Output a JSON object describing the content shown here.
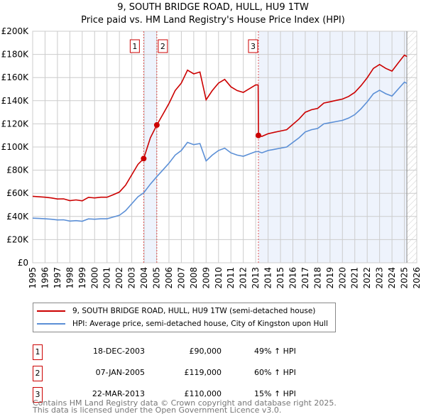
{
  "chart_data": {
    "type": "line",
    "title": "9, SOUTH BRIDGE ROAD, HULL, HU9 1TW",
    "subtitle": "Price paid vs. HM Land Registry's House Price Index (HPI)",
    "xlim": [
      1995,
      2026
    ],
    "ylim": [
      0,
      200000
    ],
    "yticks": [
      0,
      20000,
      40000,
      60000,
      80000,
      100000,
      120000,
      140000,
      160000,
      180000,
      200000
    ],
    "ytick_labels": [
      "£0",
      "£20K",
      "£40K",
      "£60K",
      "£80K",
      "£100K",
      "£120K",
      "£140K",
      "£160K",
      "£180K",
      "£200K"
    ],
    "xticks": [
      1995,
      1996,
      1997,
      1998,
      1999,
      2000,
      2001,
      2002,
      2003,
      2004,
      2005,
      2006,
      2007,
      2008,
      2009,
      2010,
      2011,
      2012,
      2013,
      2014,
      2015,
      2016,
      2017,
      2018,
      2019,
      2020,
      2021,
      2022,
      2023,
      2024,
      2025,
      2026
    ],
    "grid": true,
    "data_end": 2025.2,
    "series": [
      {
        "name": "9, SOUTH BRIDGE ROAD, HULL, HU9 1TW (semi-detached house)",
        "color": "#cc0000",
        "x": [
          1995,
          1995.5,
          1996,
          1996.5,
          1997,
          1997.5,
          1998,
          1998.5,
          1999,
          1999.5,
          2000,
          2000.5,
          2001,
          2001.5,
          2002,
          2002.5,
          2003,
          2003.5,
          2003.96,
          2004.5,
          2005.02,
          2005.5,
          2006,
          2006.5,
          2007,
          2007.5,
          2008,
          2008.5,
          2009,
          2009.5,
          2010,
          2010.5,
          2011,
          2011.5,
          2012,
          2012.5,
          2013,
          2013.2,
          2013.22,
          2013.5,
          2014,
          2014.5,
          2015,
          2015.5,
          2016,
          2016.5,
          2017,
          2017.5,
          2018,
          2018.5,
          2019,
          2019.5,
          2020,
          2020.5,
          2021,
          2021.5,
          2022,
          2022.5,
          2023,
          2023.5,
          2024,
          2024.5,
          2025,
          2025.2
        ],
        "y": [
          57400,
          57000,
          56600,
          56000,
          55100,
          55200,
          53700,
          54300,
          53500,
          56500,
          56000,
          56600,
          56600,
          58800,
          61100,
          67000,
          76000,
          85000,
          90000,
          108000,
          119000,
          128000,
          137600,
          148800,
          155200,
          166400,
          163200,
          164800,
          140800,
          148800,
          155200,
          158400,
          152000,
          148800,
          147200,
          150400,
          153600,
          153600,
          110000,
          109200,
          111500,
          112700,
          113800,
          115000,
          119600,
          124200,
          130000,
          132200,
          133400,
          138000,
          139100,
          140300,
          141400,
          143700,
          147200,
          153000,
          159800,
          167900,
          171300,
          167900,
          165600,
          172500,
          179400,
          178200
        ]
      },
      {
        "name": "HPI: Average price, semi-detached house, City of Kingston upon Hull",
        "color": "#5b8fd6",
        "x": [
          1995,
          1995.5,
          1996,
          1996.5,
          1997,
          1997.5,
          1998,
          1998.5,
          1999,
          1999.5,
          2000,
          2000.5,
          2001,
          2001.5,
          2002,
          2002.5,
          2003,
          2003.5,
          2003.96,
          2004.5,
          2005.02,
          2005.5,
          2006,
          2006.5,
          2007,
          2007.5,
          2008,
          2008.5,
          2009,
          2009.5,
          2010,
          2010.5,
          2011,
          2011.5,
          2012,
          2012.5,
          2013,
          2013.2,
          2013.22,
          2013.5,
          2014,
          2014.5,
          2015,
          2015.5,
          2016,
          2016.5,
          2017,
          2017.5,
          2018,
          2018.5,
          2019,
          2019.5,
          2020,
          2020.5,
          2021,
          2021.5,
          2022,
          2022.5,
          2023,
          2023.5,
          2024,
          2024.5,
          2025,
          2025.2
        ],
        "y": [
          38500,
          38300,
          38000,
          37600,
          37000,
          37100,
          36000,
          36400,
          35900,
          37900,
          37600,
          38000,
          38000,
          39500,
          41000,
          45000,
          51000,
          57000,
          60400,
          68000,
          74400,
          80000,
          86000,
          93000,
          97000,
          104000,
          102000,
          103000,
          88000,
          93000,
          97000,
          99000,
          95000,
          93000,
          92000,
          94000,
          96000,
          96000,
          96000,
          95000,
          97000,
          98000,
          99000,
          100000,
          104000,
          108000,
          113000,
          115000,
          116000,
          120000,
          121000,
          122000,
          123000,
          125000,
          128000,
          133000,
          139000,
          146000,
          149000,
          146000,
          144000,
          150000,
          156000,
          155000
        ]
      }
    ],
    "sales": [
      {
        "label": "1",
        "x": 2003.96,
        "y": 90000,
        "date": "18-DEC-2003",
        "price": "£90,000",
        "hpi": "49% ↑ HPI"
      },
      {
        "label": "2",
        "x": 2005.02,
        "y": 119000,
        "date": "07-JAN-2005",
        "price": "£119,000",
        "hpi": "60% ↑ HPI"
      },
      {
        "label": "3",
        "x": 2013.22,
        "y": 110000,
        "date": "22-MAR-2013",
        "price": "£110,000",
        "hpi": "15% ↑ HPI"
      }
    ]
  },
  "footer": {
    "line1": "Contains HM Land Registry data © Crown copyright and database right 2025.",
    "line2": "This data is licensed under the Open Government Licence v3.0."
  }
}
